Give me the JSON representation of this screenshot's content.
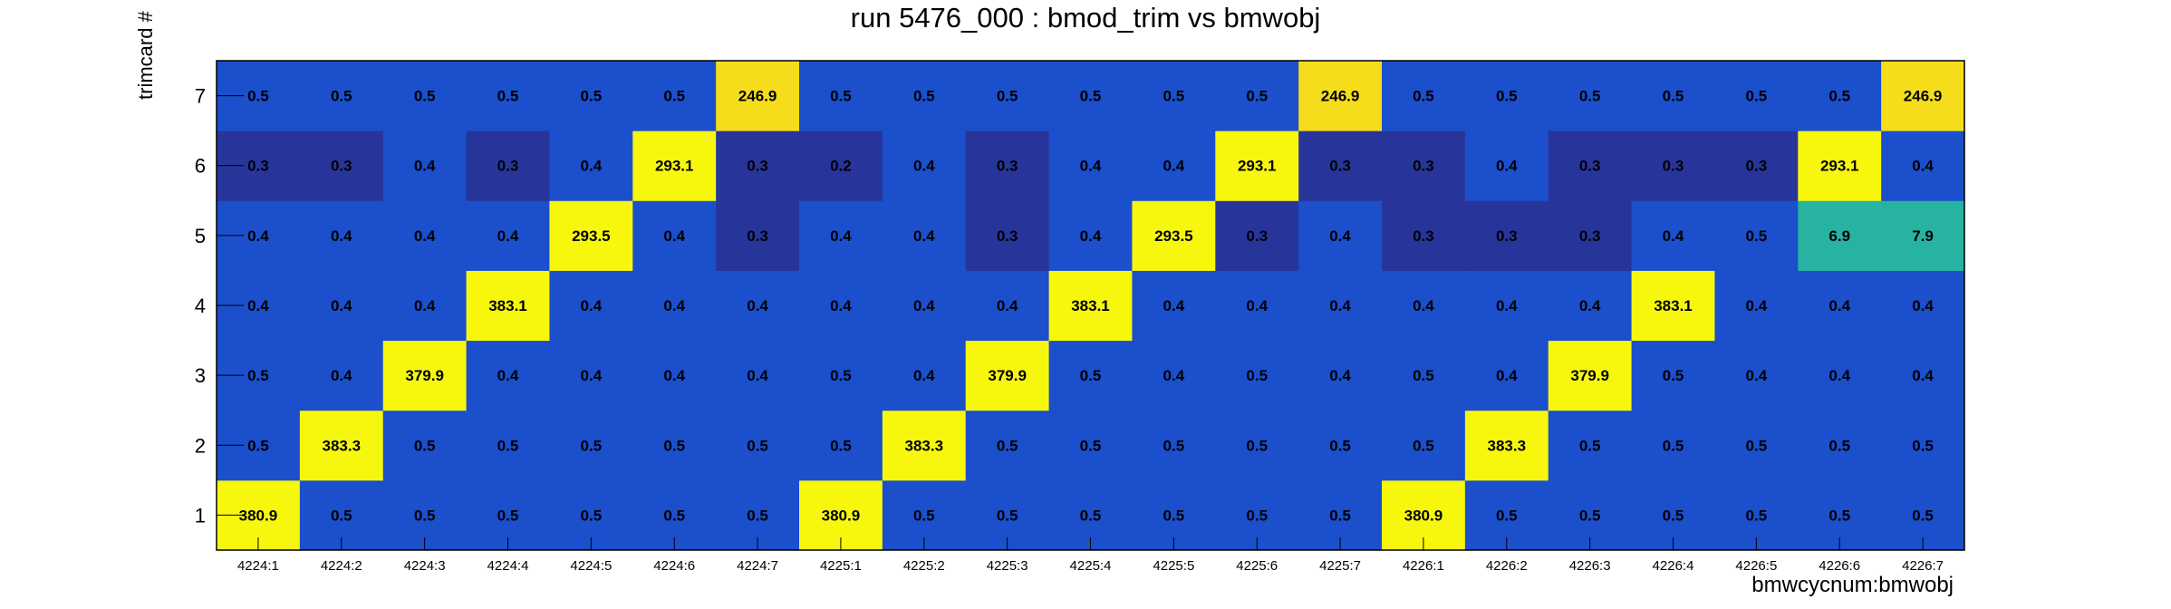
{
  "chart_data": {
    "type": "heatmap",
    "title": "run 5476_000 : bmod_trim vs bmwobj",
    "xlabel": "bmwcycnum:bmwobj",
    "ylabel": "trimcard #",
    "x_categories": [
      "4224:1",
      "4224:2",
      "4224:3",
      "4224:4",
      "4224:5",
      "4224:6",
      "4224:7",
      "4225:1",
      "4225:2",
      "4225:3",
      "4225:4",
      "4225:5",
      "4225:6",
      "4225:7",
      "4226:1",
      "4226:2",
      "4226:3",
      "4226:4",
      "4226:5",
      "4226:6",
      "4226:7"
    ],
    "y_categories": [
      "1",
      "2",
      "3",
      "4",
      "5",
      "6",
      "7"
    ],
    "values": [
      [
        "380.9",
        "0.5",
        "0.5",
        "0.5",
        "0.5",
        "0.5",
        "0.5",
        "380.9",
        "0.5",
        "0.5",
        "0.5",
        "0.5",
        "0.5",
        "0.5",
        "380.9",
        "0.5",
        "0.5",
        "0.5",
        "0.5",
        "0.5",
        "0.5"
      ],
      [
        "0.5",
        "383.3",
        "0.5",
        "0.5",
        "0.5",
        "0.5",
        "0.5",
        "0.5",
        "383.3",
        "0.5",
        "0.5",
        "0.5",
        "0.5",
        "0.5",
        "0.5",
        "383.3",
        "0.5",
        "0.5",
        "0.5",
        "0.5",
        "0.5"
      ],
      [
        "0.5",
        "0.4",
        "379.9",
        "0.4",
        "0.4",
        "0.4",
        "0.4",
        "0.5",
        "0.4",
        "379.9",
        "0.5",
        "0.4",
        "0.5",
        "0.4",
        "0.5",
        "0.4",
        "379.9",
        "0.5",
        "0.4",
        "0.4",
        "0.4"
      ],
      [
        "0.4",
        "0.4",
        "0.4",
        "383.1",
        "0.4",
        "0.4",
        "0.4",
        "0.4",
        "0.4",
        "0.4",
        "383.1",
        "0.4",
        "0.4",
        "0.4",
        "0.4",
        "0.4",
        "0.4",
        "383.1",
        "0.4",
        "0.4",
        "0.4"
      ],
      [
        "0.4",
        "0.4",
        "0.4",
        "0.4",
        "293.5",
        "0.4",
        "0.3",
        "0.4",
        "0.4",
        "0.3",
        "0.4",
        "293.5",
        "0.3",
        "0.4",
        "0.3",
        "0.3",
        "0.3",
        "0.4",
        "0.5",
        "6.9",
        "7.9"
      ],
      [
        "0.3",
        "0.3",
        "0.4",
        "0.3",
        "0.4",
        "293.1",
        "0.3",
        "0.2",
        "0.4",
        "0.3",
        "0.4",
        "0.4",
        "293.1",
        "0.3",
        "0.3",
        "0.4",
        "0.3",
        "0.3",
        "0.3",
        "293.1",
        "0.4"
      ],
      [
        "0.5",
        "0.5",
        "0.5",
        "0.5",
        "0.5",
        "0.5",
        "246.9",
        "0.5",
        "0.5",
        "0.5",
        "0.5",
        "0.5",
        "0.5",
        "246.9",
        "0.5",
        "0.5",
        "0.5",
        "0.5",
        "0.5",
        "0.5",
        "246.9"
      ]
    ],
    "colors": {
      "very_low": "#27359b",
      "low": "#1b4fcb",
      "mid": "#26b3a2",
      "high_246": "#f5dd1c",
      "high": "#f7f70e",
      "frame": "#000000"
    },
    "grid": false,
    "legend": "none"
  }
}
